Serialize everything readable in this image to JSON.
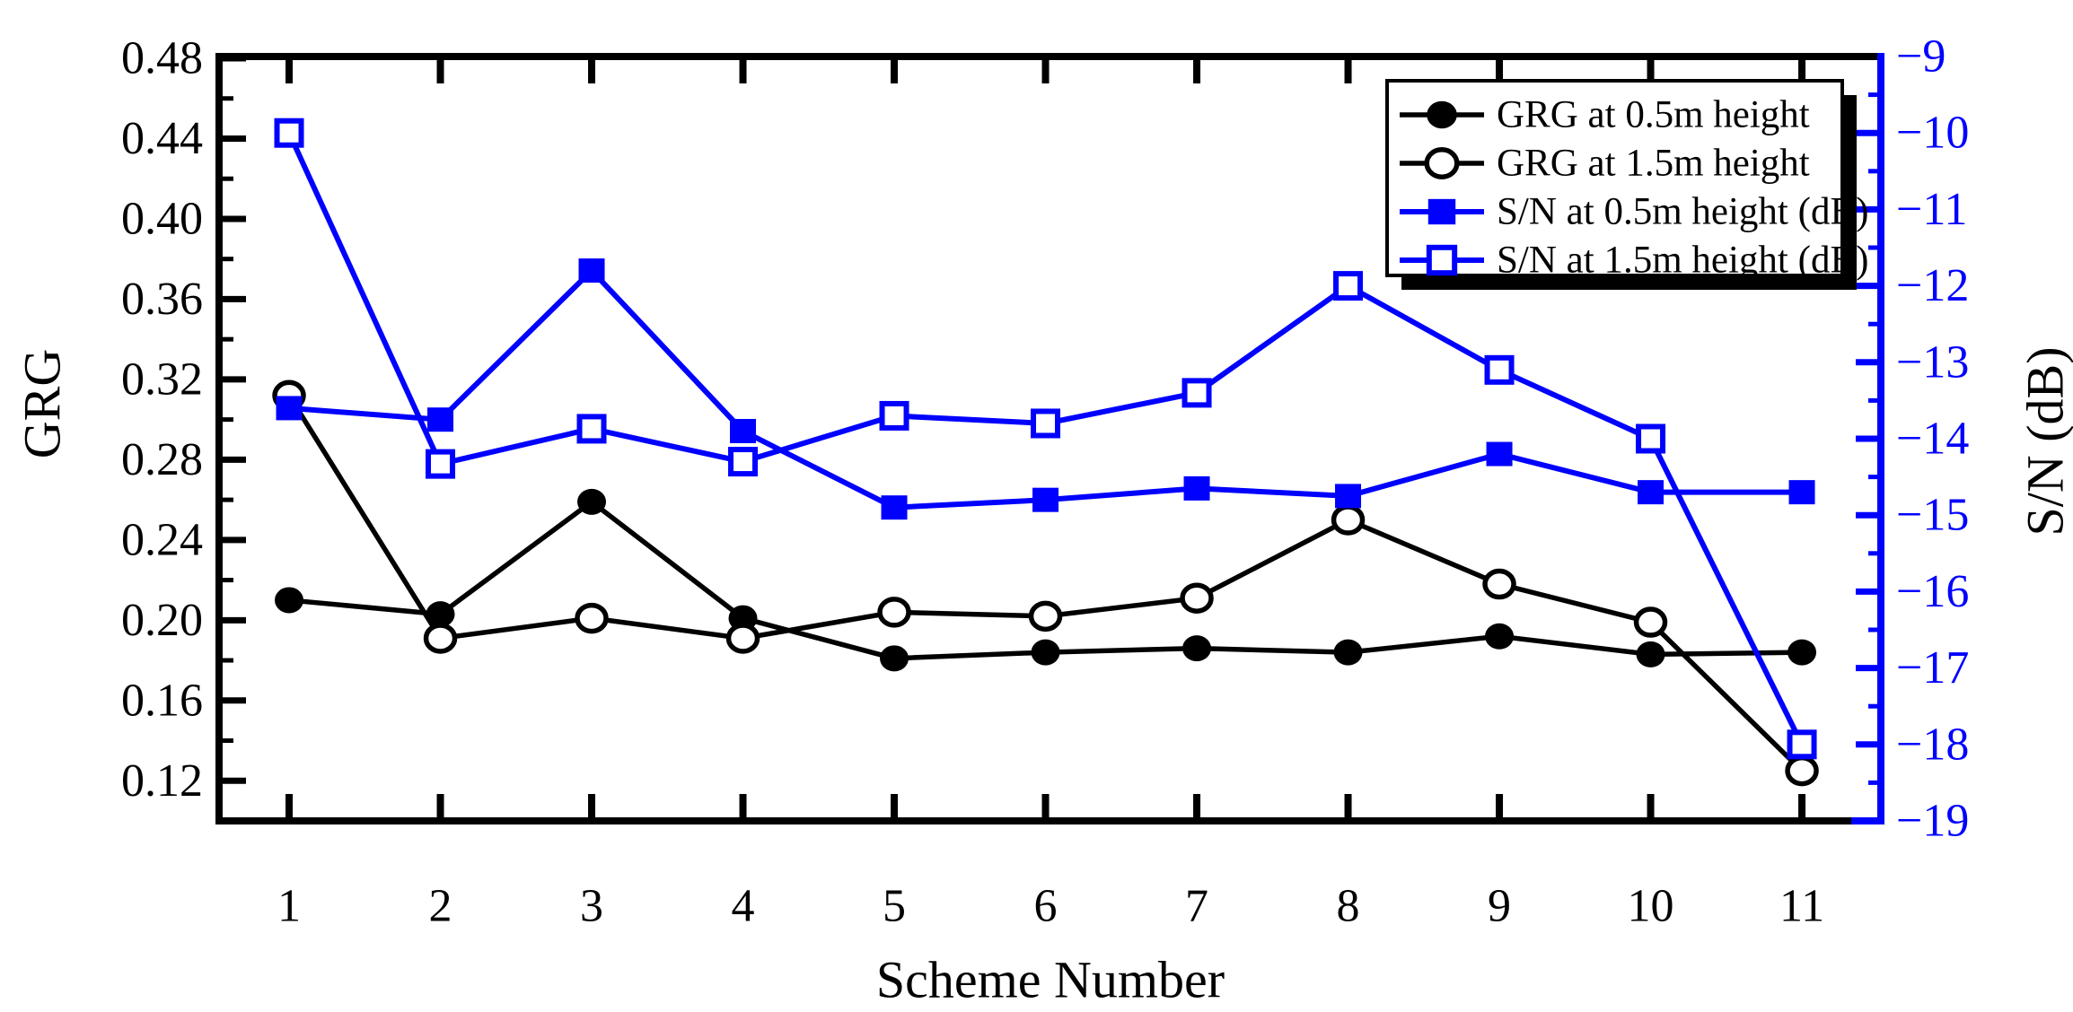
{
  "chart_data": {
    "type": "line",
    "title": "",
    "xlabel": "Scheme Number",
    "ylabel_left": "GRG",
    "ylabel_right": "S/N (dB)",
    "background_color": "#ffffff",
    "axis_color_left": "#000000",
    "axis_color_right": "#0000ff",
    "grid": false,
    "legend_position": "top-right",
    "x": [
      1,
      2,
      3,
      4,
      5,
      6,
      7,
      8,
      9,
      10,
      11
    ],
    "xtick_labels": [
      "1",
      "2",
      "3",
      "4",
      "5",
      "6",
      "7",
      "8",
      "9",
      "10",
      "11"
    ],
    "xlim": [
      0.537,
      11.522
    ],
    "ylim_left": [
      0.1,
      0.48
    ],
    "ylim_right": [
      -19,
      -9
    ],
    "yticks_left": {
      "values": [
        0.48,
        0.44,
        0.4,
        0.36,
        0.32,
        0.28,
        0.24,
        0.2,
        0.16,
        0.12
      ],
      "labels": [
        "0.48",
        "0.44",
        "0.40",
        "0.36",
        "0.32",
        "0.28",
        "0.24",
        "0.20",
        "0.16",
        "0.12"
      ],
      "minor": [
        0.46,
        0.42,
        0.38,
        0.34,
        0.3,
        0.26,
        0.22,
        0.18,
        0.14
      ]
    },
    "yticks_right": {
      "values": [
        -9,
        -10,
        -11,
        -12,
        -13,
        -14,
        -15,
        -16,
        -17,
        -18,
        -19
      ],
      "labels": [
        "−9",
        "−10",
        "−11",
        "−12",
        "−13",
        "−14",
        "−15",
        "−16",
        "−17",
        "−18",
        "−19"
      ],
      "minor": [
        -9.5,
        -10.5,
        -11.5,
        -12.5,
        -13.5,
        -14.5,
        -15.5,
        -16.5,
        -17.5,
        -18.5
      ]
    },
    "series": [
      {
        "name": "GRG at 0.5m height",
        "axis": "left",
        "marker": "circle-filled",
        "color": "#000000",
        "values": [
          0.21,
          0.203,
          0.259,
          0.201,
          0.181,
          0.184,
          0.186,
          0.184,
          0.192,
          0.183,
          0.184
        ]
      },
      {
        "name": "GRG at 1.5m height",
        "axis": "left",
        "marker": "circle-open",
        "color": "#000000",
        "values": [
          0.312,
          0.191,
          0.201,
          0.191,
          0.204,
          0.202,
          0.211,
          0.25,
          0.218,
          0.199,
          0.125
        ]
      },
      {
        "name": "S/N at 0.5m height (dB)",
        "axis": "right",
        "marker": "square-filled",
        "color": "#0000ff",
        "values": [
          -13.6,
          -13.75,
          -11.8,
          -13.9,
          -14.9,
          -14.8,
          -14.65,
          -14.75,
          -14.2,
          -14.7,
          -14.7
        ]
      },
      {
        "name": "S/N at 1.5m height (dB)",
        "axis": "right",
        "marker": "square-open",
        "color": "#0000ff",
        "values": [
          -10.0,
          -14.33,
          -13.87,
          -14.3,
          -13.7,
          -13.8,
          -13.4,
          -12.0,
          -13.1,
          -14.0,
          -18.0
        ]
      }
    ]
  }
}
